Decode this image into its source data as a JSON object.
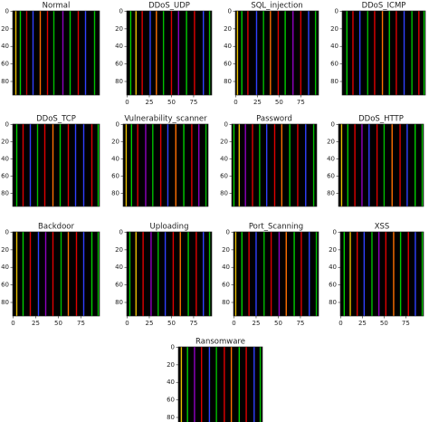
{
  "chart_data": [
    {
      "type": "image",
      "title": "Normal",
      "xlim": [
        -0.5,
        95.5
      ],
      "ylim": [
        -0.5,
        95.5
      ],
      "y_inverted": true,
      "yticks": [
        0,
        20,
        40,
        60,
        80
      ],
      "background": "#000000",
      "stripes": [
        {
          "x": 3,
          "color": "#e8c000"
        },
        {
          "x": 8,
          "color": "#00d000"
        },
        {
          "x": 15,
          "color": "#c00000"
        },
        {
          "x": 22,
          "color": "#3040ff"
        },
        {
          "x": 30,
          "color": "#ff7000"
        },
        {
          "x": 38,
          "color": "#e00000"
        },
        {
          "x": 45,
          "color": "#00c000"
        },
        {
          "x": 55,
          "color": "#9000c0"
        },
        {
          "x": 63,
          "color": "#00d000"
        },
        {
          "x": 72,
          "color": "#e00000"
        },
        {
          "x": 80,
          "color": "#3040ff"
        },
        {
          "x": 90,
          "color": "#00c000"
        }
      ]
    },
    {
      "type": "image",
      "title": "DDoS_UDP",
      "xlim": [
        -0.5,
        95.5
      ],
      "ylim": [
        -0.5,
        95.5
      ],
      "y_inverted": true,
      "xticks": [
        0,
        25,
        50,
        75
      ],
      "yticks": [
        0,
        20,
        40,
        60,
        80
      ],
      "background": "#000000",
      "stripes": [
        {
          "x": 4,
          "color": "#00d000"
        },
        {
          "x": 10,
          "color": "#e8c000"
        },
        {
          "x": 17,
          "color": "#e00000"
        },
        {
          "x": 26,
          "color": "#3040ff"
        },
        {
          "x": 33,
          "color": "#ff7000"
        },
        {
          "x": 41,
          "color": "#00c000"
        },
        {
          "x": 50,
          "color": "#e00000"
        },
        {
          "x": 58,
          "color": "#9000c0"
        },
        {
          "x": 67,
          "color": "#00d000"
        },
        {
          "x": 76,
          "color": "#e00000"
        },
        {
          "x": 86,
          "color": "#3040ff"
        },
        {
          "x": 93,
          "color": "#00c000"
        }
      ]
    },
    {
      "type": "image",
      "title": "SQL_injection",
      "xlim": [
        -0.5,
        95.5
      ],
      "ylim": [
        -0.5,
        95.5
      ],
      "y_inverted": true,
      "xticks": [
        0,
        25,
        50,
        75
      ],
      "yticks": [
        0,
        20,
        40,
        60,
        80
      ],
      "background": "#000000",
      "stripes": [
        {
          "x": 2,
          "color": "#e8c000"
        },
        {
          "x": 7,
          "color": "#00d000"
        },
        {
          "x": 14,
          "color": "#e00000"
        },
        {
          "x": 24,
          "color": "#3040ff"
        },
        {
          "x": 32,
          "color": "#00c000"
        },
        {
          "x": 40,
          "color": "#ff7000"
        },
        {
          "x": 49,
          "color": "#e00000"
        },
        {
          "x": 57,
          "color": "#00d000"
        },
        {
          "x": 66,
          "color": "#9000c0"
        },
        {
          "x": 75,
          "color": "#e00000"
        },
        {
          "x": 84,
          "color": "#3040ff"
        },
        {
          "x": 92,
          "color": "#00c000"
        }
      ]
    },
    {
      "type": "image",
      "title": "DDoS_ICMP",
      "xlim": [
        -0.5,
        95.5
      ],
      "ylim": [
        -0.5,
        95.5
      ],
      "y_inverted": true,
      "yticks": [
        0,
        20,
        40,
        60,
        80
      ],
      "background": "#000000",
      "stripes": [
        {
          "x": 5,
          "color": "#00d000"
        },
        {
          "x": 12,
          "color": "#e00000"
        },
        {
          "x": 20,
          "color": "#3040ff"
        },
        {
          "x": 29,
          "color": "#00c000"
        },
        {
          "x": 37,
          "color": "#e00000"
        },
        {
          "x": 46,
          "color": "#ff7000"
        },
        {
          "x": 54,
          "color": "#00d000"
        },
        {
          "x": 62,
          "color": "#e00000"
        },
        {
          "x": 71,
          "color": "#3040ff"
        },
        {
          "x": 80,
          "color": "#00c000"
        },
        {
          "x": 88,
          "color": "#e00000"
        },
        {
          "x": 94,
          "color": "#00d000"
        }
      ]
    },
    {
      "type": "image",
      "title": "DDoS_TCP",
      "xlim": [
        -0.5,
        95.5
      ],
      "ylim": [
        -0.5,
        95.5
      ],
      "y_inverted": true,
      "yticks": [
        0,
        20,
        40,
        60,
        80
      ],
      "background": "#000000",
      "stripes": [
        {
          "x": 4,
          "color": "#00d000"
        },
        {
          "x": 11,
          "color": "#e00000"
        },
        {
          "x": 19,
          "color": "#3040ff"
        },
        {
          "x": 27,
          "color": "#00c000"
        },
        {
          "x": 35,
          "color": "#e00000"
        },
        {
          "x": 44,
          "color": "#ff7000"
        },
        {
          "x": 52,
          "color": "#00d000"
        },
        {
          "x": 61,
          "color": "#e00000"
        },
        {
          "x": 69,
          "color": "#3040ff"
        },
        {
          "x": 78,
          "color": "#3040ff"
        },
        {
          "x": 87,
          "color": "#e00000"
        },
        {
          "x": 94,
          "color": "#00d000"
        }
      ]
    },
    {
      "type": "image",
      "title": "Vulnerability_scanner",
      "xlim": [
        -0.5,
        95.5
      ],
      "ylim": [
        -0.5,
        95.5
      ],
      "y_inverted": true,
      "yticks": [
        0,
        20,
        40,
        60,
        80
      ],
      "background": "#000000",
      "stripes": [
        {
          "x": 3,
          "color": "#e8c000"
        },
        {
          "x": 9,
          "color": "#00d000"
        },
        {
          "x": 16,
          "color": "#e00000"
        },
        {
          "x": 25,
          "color": "#9000c0"
        },
        {
          "x": 33,
          "color": "#00c000"
        },
        {
          "x": 42,
          "color": "#e00000"
        },
        {
          "x": 50,
          "color": "#3040ff"
        },
        {
          "x": 59,
          "color": "#ff7000"
        },
        {
          "x": 68,
          "color": "#00d000"
        },
        {
          "x": 77,
          "color": "#e00000"
        },
        {
          "x": 85,
          "color": "#9000c0"
        },
        {
          "x": 93,
          "color": "#00c000"
        }
      ]
    },
    {
      "type": "image",
      "title": "Password",
      "xlim": [
        -0.5,
        95.5
      ],
      "ylim": [
        -0.5,
        95.5
      ],
      "y_inverted": true,
      "yticks": [
        0,
        20,
        40,
        60,
        80
      ],
      "background": "#000000",
      "stripes": [
        {
          "x": 2,
          "color": "#00d000"
        },
        {
          "x": 8,
          "color": "#e8c000"
        },
        {
          "x": 15,
          "color": "#9000c0"
        },
        {
          "x": 23,
          "color": "#e00000"
        },
        {
          "x": 31,
          "color": "#00c000"
        },
        {
          "x": 39,
          "color": "#3040ff"
        },
        {
          "x": 48,
          "color": "#e00000"
        },
        {
          "x": 56,
          "color": "#ff7000"
        },
        {
          "x": 65,
          "color": "#00d000"
        },
        {
          "x": 74,
          "color": "#e00000"
        },
        {
          "x": 83,
          "color": "#3040ff"
        },
        {
          "x": 92,
          "color": "#00c000"
        }
      ]
    },
    {
      "type": "image",
      "title": "DDoS_HTTP",
      "xlim": [
        -0.5,
        95.5
      ],
      "ylim": [
        -0.5,
        95.5
      ],
      "y_inverted": true,
      "yticks": [
        0,
        20,
        40,
        60,
        80
      ],
      "background": "#000000",
      "stripes": [
        {
          "x": 3,
          "color": "#e8c000"
        },
        {
          "x": 10,
          "color": "#00d000"
        },
        {
          "x": 18,
          "color": "#e00000"
        },
        {
          "x": 26,
          "color": "#9000c0"
        },
        {
          "x": 34,
          "color": "#3040ff"
        },
        {
          "x": 43,
          "color": "#e00000"
        },
        {
          "x": 51,
          "color": "#00c000"
        },
        {
          "x": 60,
          "color": "#ff7000"
        },
        {
          "x": 69,
          "color": "#e00000"
        },
        {
          "x": 77,
          "color": "#3040ff"
        },
        {
          "x": 86,
          "color": "#00d000"
        },
        {
          "x": 94,
          "color": "#00c000"
        }
      ]
    },
    {
      "type": "image",
      "title": "Backdoor",
      "xlim": [
        -0.5,
        95.5
      ],
      "ylim": [
        -0.5,
        95.5
      ],
      "y_inverted": true,
      "xticks": [
        0,
        25,
        50,
        75
      ],
      "yticks": [
        0,
        20,
        40,
        60,
        80
      ],
      "background": "#000000",
      "stripes": [
        {
          "x": 4,
          "color": "#e8c000"
        },
        {
          "x": 11,
          "color": "#00d000"
        },
        {
          "x": 19,
          "color": "#e00000"
        },
        {
          "x": 28,
          "color": "#3040ff"
        },
        {
          "x": 36,
          "color": "#9000c0"
        },
        {
          "x": 44,
          "color": "#e00000"
        },
        {
          "x": 53,
          "color": "#00c000"
        },
        {
          "x": 61,
          "color": "#ff7000"
        },
        {
          "x": 70,
          "color": "#e00000"
        },
        {
          "x": 78,
          "color": "#3040ff"
        },
        {
          "x": 87,
          "color": "#00d000"
        },
        {
          "x": 94,
          "color": "#00c000"
        }
      ]
    },
    {
      "type": "image",
      "title": "Uploading",
      "xlim": [
        -0.5,
        95.5
      ],
      "ylim": [
        -0.5,
        95.5
      ],
      "y_inverted": true,
      "xticks": [
        0,
        25,
        50,
        75
      ],
      "yticks": [
        0,
        20,
        40,
        60,
        80
      ],
      "background": "#000000",
      "stripes": [
        {
          "x": 3,
          "color": "#00d000"
        },
        {
          "x": 10,
          "color": "#e8c000"
        },
        {
          "x": 18,
          "color": "#e00000"
        },
        {
          "x": 27,
          "color": "#9000c0"
        },
        {
          "x": 35,
          "color": "#00c000"
        },
        {
          "x": 43,
          "color": "#3040ff"
        },
        {
          "x": 52,
          "color": "#e00000"
        },
        {
          "x": 60,
          "color": "#ff7000"
        },
        {
          "x": 69,
          "color": "#00d000"
        },
        {
          "x": 78,
          "color": "#e00000"
        },
        {
          "x": 86,
          "color": "#3040ff"
        },
        {
          "x": 93,
          "color": "#00c000"
        }
      ]
    },
    {
      "type": "image",
      "title": "Port_Scanning",
      "xlim": [
        -0.5,
        95.5
      ],
      "ylim": [
        -0.5,
        95.5
      ],
      "y_inverted": true,
      "xticks": [
        0,
        25,
        50,
        75
      ],
      "yticks": [
        0,
        20,
        40,
        60,
        80
      ],
      "background": "#000000",
      "stripes": [
        {
          "x": 2,
          "color": "#e8c000"
        },
        {
          "x": 9,
          "color": "#00d000"
        },
        {
          "x": 17,
          "color": "#e00000"
        },
        {
          "x": 25,
          "color": "#3040ff"
        },
        {
          "x": 34,
          "color": "#00c000"
        },
        {
          "x": 42,
          "color": "#e00000"
        },
        {
          "x": 51,
          "color": "#9000c0"
        },
        {
          "x": 59,
          "color": "#ff7000"
        },
        {
          "x": 68,
          "color": "#00d000"
        },
        {
          "x": 76,
          "color": "#e00000"
        },
        {
          "x": 85,
          "color": "#3040ff"
        },
        {
          "x": 93,
          "color": "#00c000"
        }
      ]
    },
    {
      "type": "image",
      "title": "XSS",
      "xlim": [
        -0.5,
        95.5
      ],
      "ylim": [
        -0.5,
        95.5
      ],
      "y_inverted": true,
      "xticks": [
        0,
        25,
        50,
        75
      ],
      "yticks": [
        0,
        20,
        40,
        60,
        80
      ],
      "background": "#000000",
      "stripes": [
        {
          "x": 4,
          "color": "#00d000"
        },
        {
          "x": 11,
          "color": "#e8c000"
        },
        {
          "x": 19,
          "color": "#e00000"
        },
        {
          "x": 27,
          "color": "#3040ff"
        },
        {
          "x": 36,
          "color": "#00c000"
        },
        {
          "x": 44,
          "color": "#9000c0"
        },
        {
          "x": 52,
          "color": "#e00000"
        },
        {
          "x": 61,
          "color": "#ff7000"
        },
        {
          "x": 69,
          "color": "#00d000"
        },
        {
          "x": 78,
          "color": "#e00000"
        },
        {
          "x": 86,
          "color": "#3040ff"
        },
        {
          "x": 94,
          "color": "#00c000"
        }
      ]
    },
    {
      "type": "image",
      "title": "Ransomware",
      "xlim": [
        -0.5,
        95.5
      ],
      "ylim": [
        -0.5,
        95.5
      ],
      "y_inverted": true,
      "yticks": [
        0,
        20,
        40,
        60,
        80
      ],
      "background": "#000000",
      "stripes": [
        {
          "x": 3,
          "color": "#e8c000"
        },
        {
          "x": 10,
          "color": "#00d000"
        },
        {
          "x": 18,
          "color": "#9000c0"
        },
        {
          "x": 26,
          "color": "#e00000"
        },
        {
          "x": 35,
          "color": "#3040ff"
        },
        {
          "x": 43,
          "color": "#00c000"
        },
        {
          "x": 52,
          "color": "#e00000"
        },
        {
          "x": 60,
          "color": "#ff7000"
        },
        {
          "x": 69,
          "color": "#00d000"
        },
        {
          "x": 77,
          "color": "#e00000"
        },
        {
          "x": 86,
          "color": "#3040ff"
        },
        {
          "x": 93,
          "color": "#00c000"
        }
      ]
    }
  ]
}
